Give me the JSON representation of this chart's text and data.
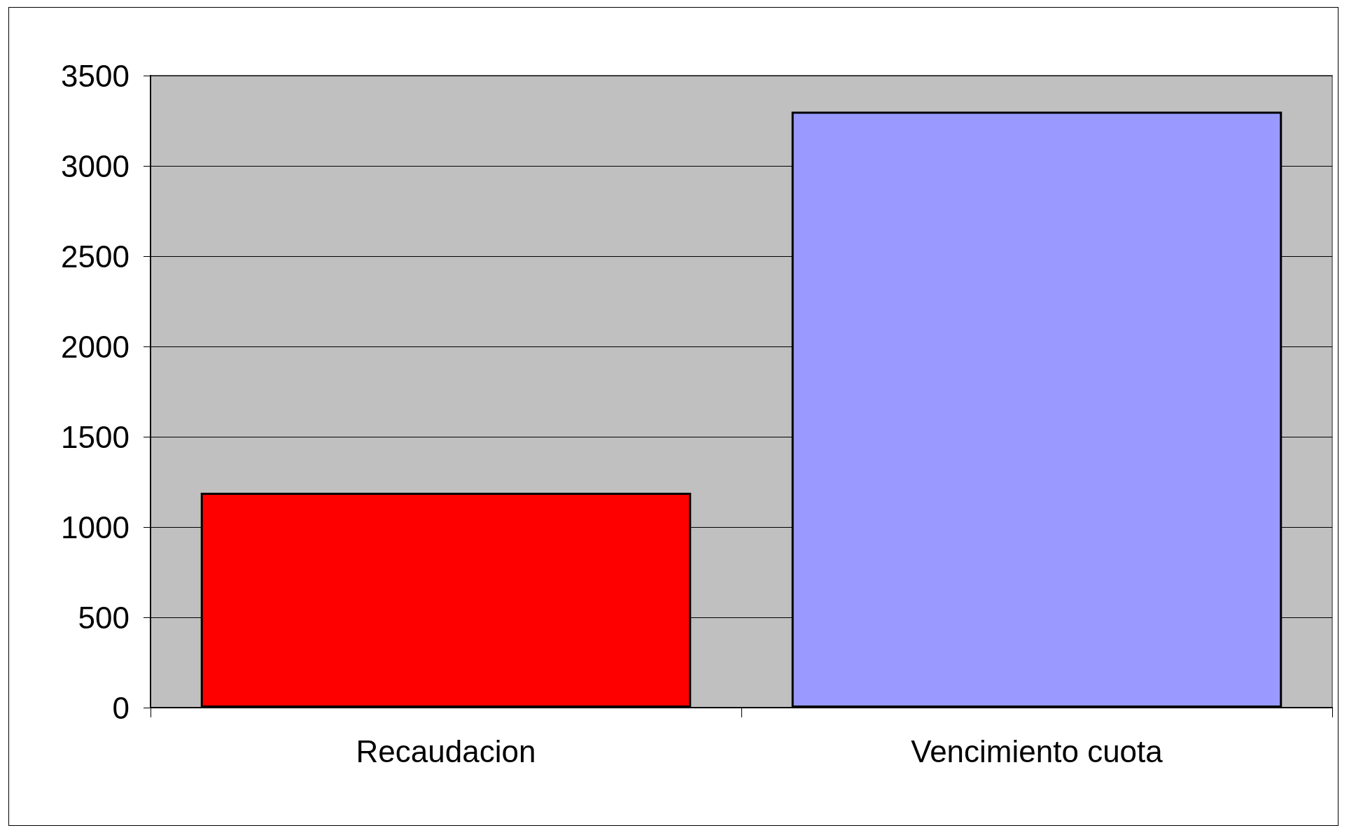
{
  "chart_data": {
    "type": "bar",
    "categories": [
      "Recaudacion",
      "Vencimiento cuota"
    ],
    "values": [
      1190,
      3300
    ],
    "colors": [
      "#ff0000",
      "#9999ff"
    ],
    "ylim": [
      0,
      3500
    ],
    "yticks": [
      0,
      500,
      1000,
      1500,
      2000,
      2500,
      3000,
      3500
    ],
    "grid": "y"
  }
}
